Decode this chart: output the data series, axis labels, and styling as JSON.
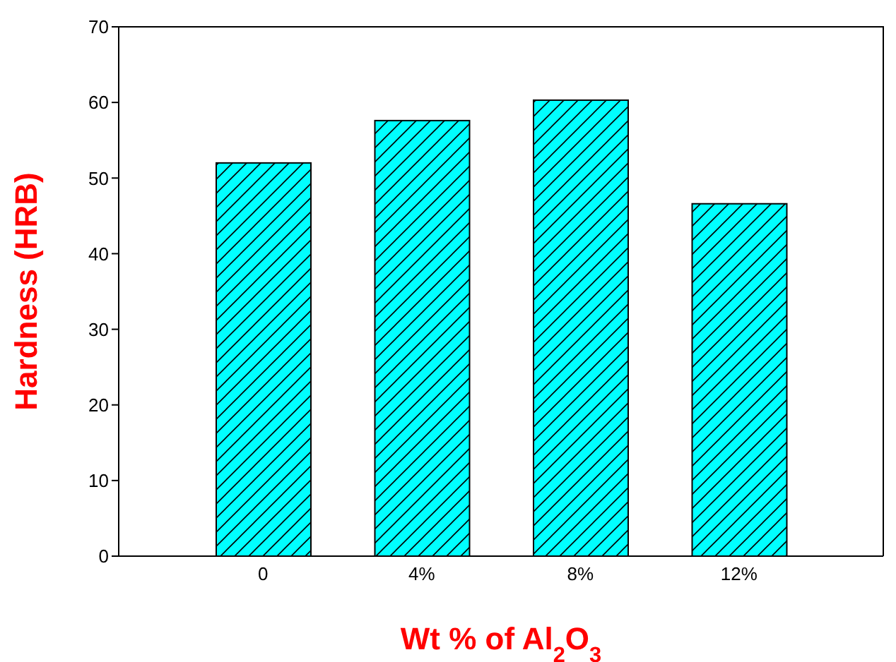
{
  "chart_data": {
    "type": "bar",
    "xlabel": "Wt % of Al$_{2}$O$_{3}$",
    "ylabel": "Hardness (HRB)",
    "categories": [
      "0",
      "4%",
      "8%",
      "12%"
    ],
    "values": [
      52,
      57.6,
      60.3,
      46.6
    ],
    "color": "#00ffff",
    "ylim": [
      0,
      70
    ],
    "yticks": [
      0,
      10,
      20,
      30,
      40,
      50,
      60,
      70
    ]
  }
}
